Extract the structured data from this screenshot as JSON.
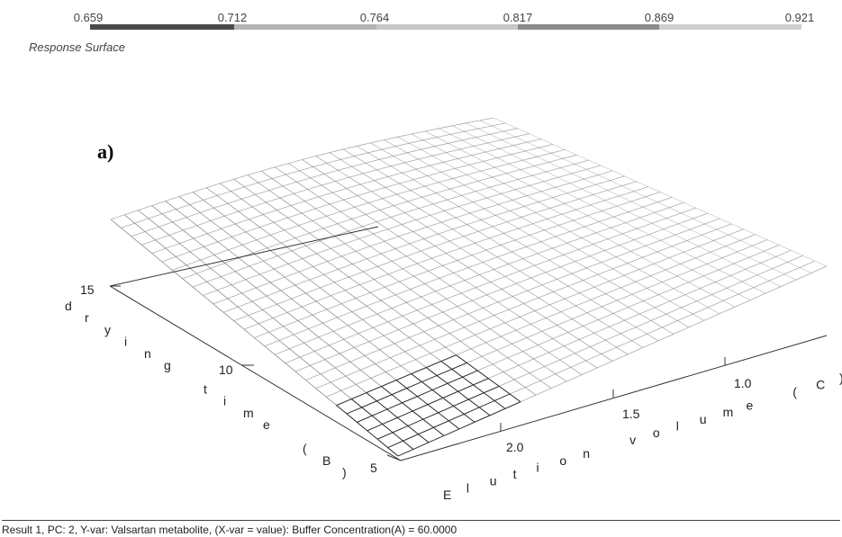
{
  "chart_data": {
    "type": "surface",
    "title": "Response Surface",
    "panel_label": "a)",
    "legend": {
      "values": [
        "0.659",
        "0.712",
        "0.764",
        "0.817",
        "0.869",
        "0.921"
      ],
      "colors": [
        "#4a4a4a",
        "#b4b4b4",
        "#c8c8c8",
        "#8c8c8c",
        "#cfcfcf",
        "#e8e8e8"
      ]
    },
    "y_axis": {
      "label": "drying time (B)",
      "ticks": [
        "15",
        "10",
        "5"
      ],
      "range": [
        5,
        15
      ]
    },
    "x_axis": {
      "label": "Elution volume (C)",
      "ticks": [
        "1.0",
        "1.5",
        "2.0"
      ],
      "range": [
        0.8,
        2.2
      ]
    },
    "z_range": [
      0.659,
      0.921
    ],
    "grid": true
  },
  "footer": {
    "text": "Result 1, PC: 2, Y-var: Valsartan metabolite, (X-var = value): Buffer Concentration(A) = 60.0000"
  }
}
